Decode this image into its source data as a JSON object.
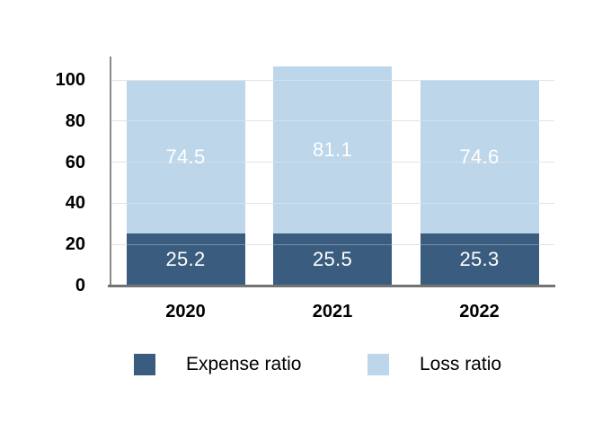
{
  "chart_data": {
    "type": "bar",
    "stacked": true,
    "title": "",
    "xlabel": "",
    "ylabel": "",
    "categories": [
      "2020",
      "2021",
      "2022"
    ],
    "series": [
      {
        "name": "Expense ratio",
        "values": [
          25.2,
          25.5,
          25.3
        ],
        "color": "#3A5C7E"
      },
      {
        "name": "Loss ratio",
        "values": [
          74.5,
          81.1,
          74.6
        ],
        "color": "#BDD6E9"
      }
    ],
    "yticks": [
      0,
      20,
      40,
      60,
      80,
      100
    ],
    "ylim": [
      0,
      112
    ],
    "grid": true,
    "legend_position": "bottom",
    "value_labels": true,
    "value_label_color": "#FFFFFF"
  },
  "colors": {
    "background": "#FFFFFF",
    "gridline": "#D9D9D9",
    "y_axis_line": "#8A8A8A",
    "x_axis_line": "#737373",
    "axis_text": "#000000"
  }
}
